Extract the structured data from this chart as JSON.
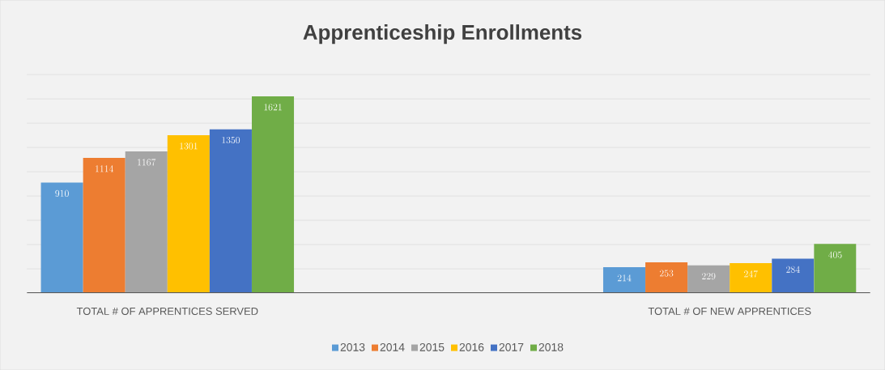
{
  "chart_data": {
    "type": "bar",
    "title": "Apprenticeship Enrollments",
    "categories": [
      "TOTAL # OF APPRENTICES SERVED",
      "TOTAL # OF NEW APPRENTICES"
    ],
    "series": [
      {
        "name": "2013",
        "color": "#5b9bd5",
        "values": [
          910,
          214
        ]
      },
      {
        "name": "2014",
        "color": "#ed7d31",
        "values": [
          1114,
          253
        ]
      },
      {
        "name": "2015",
        "color": "#a5a5a5",
        "values": [
          1167,
          229
        ]
      },
      {
        "name": "2016",
        "color": "#ffc000",
        "values": [
          1301,
          247
        ]
      },
      {
        "name": "2017",
        "color": "#4472c4",
        "values": [
          1350,
          284
        ]
      },
      {
        "name": "2018",
        "color": "#70ad47",
        "values": [
          1621,
          405
        ]
      }
    ],
    "ylim": [
      0,
      1800
    ],
    "yticks": [
      {
        "value": 0,
        "label": null
      },
      {
        "value": 200,
        "label": null
      },
      {
        "value": 400,
        "label": null
      },
      {
        "value": 600,
        "label": null
      },
      {
        "value": 800,
        "label": null
      },
      {
        "value": 1000,
        "label": null
      },
      {
        "value": 1200,
        "label": null
      },
      {
        "value": 1400,
        "label": null
      },
      {
        "value": 1600,
        "label": null
      },
      {
        "value": 1800,
        "label": null
      }
    ],
    "tick_labels": "x",
    "grid": "y",
    "data_labels": true,
    "legend": "bottom"
  }
}
